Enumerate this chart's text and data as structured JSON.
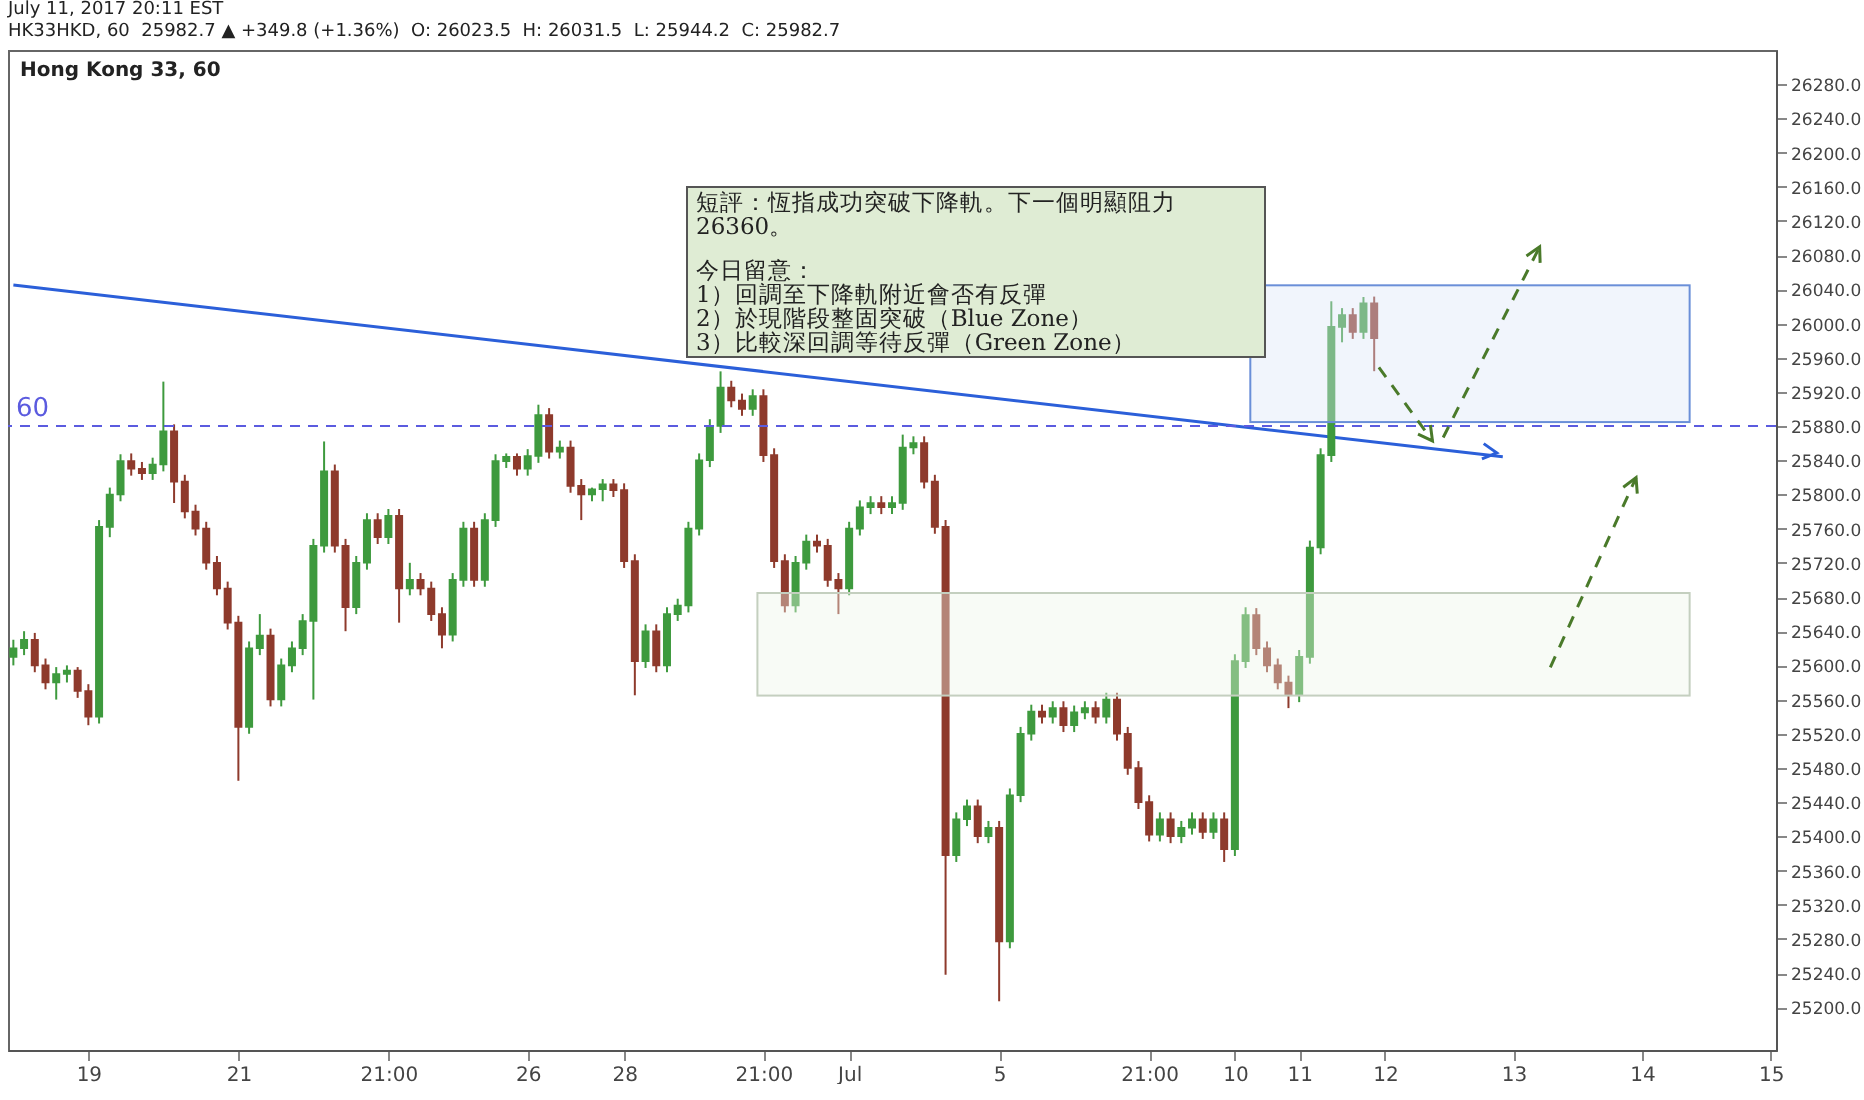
{
  "chart_data": {
    "type": "candlestick",
    "title": "Hong Kong 33, 60",
    "subtitle": "HK33HKD, 60  25982.7 ▲ +349.8 (+1.36%)  O: 26023.5  H: 26031.5  L: 25944.2  C: 25982.7",
    "annotations": [
      "July 11, 2017 20:11 EST",
      "短評：恆指成功突破下降軌。下一個明顯阻力26360。",
      "今日留意：",
      "1）回調至下降軌附近會否有反彈",
      "2）於現階段整固突破（Blue Zone）",
      "3）比較深回調等待反彈（Green Zone）",
      {
        "text": "60",
        "y": 25880
      }
    ],
    "categories": [
      null,
      null,
      null,
      null,
      null,
      null,
      null,
      "19",
      null,
      null,
      null,
      null,
      null,
      null,
      null,
      null,
      null,
      null,
      null,
      null,
      null,
      "21",
      null,
      null,
      null,
      null,
      null,
      null,
      null,
      null,
      null,
      null,
      null,
      null,
      null,
      "21:00",
      null,
      null,
      null,
      null,
      null,
      null,
      null,
      null,
      null,
      null,
      null,
      null,
      "26",
      null,
      null,
      null,
      null,
      null,
      null,
      null,
      null,
      "28",
      null,
      null,
      null,
      null,
      null,
      null,
      null,
      null,
      null,
      null,
      null,
      null,
      "21:00",
      null,
      null,
      null,
      null,
      null,
      null,
      null,
      "Jul",
      null,
      null,
      null,
      null,
      null,
      null,
      null,
      null,
      null,
      null,
      null,
      null,
      null,
      "5",
      null,
      null,
      null,
      null,
      null,
      null,
      null,
      null,
      null,
      null,
      null,
      null,
      null,
      "21:00",
      null,
      null,
      null,
      null,
      null,
      null,
      null,
      "10",
      null,
      null,
      null,
      null,
      null,
      "11",
      null,
      null,
      null,
      null,
      null,
      null,
      null,
      "12",
      null,
      null,
      null,
      null,
      null,
      null,
      null,
      null,
      null,
      null,
      null,
      "13",
      null,
      null,
      null,
      null,
      null,
      null,
      null,
      null,
      null,
      null,
      null,
      "14",
      null,
      null,
      null,
      null,
      null,
      null,
      null,
      null,
      null,
      null,
      null,
      "15"
    ],
    "ohlc": [
      [
        25610,
        25630,
        25600,
        25620
      ],
      [
        25620,
        25640,
        25612,
        25630
      ],
      [
        25630,
        25638,
        25592,
        25600
      ],
      [
        25600,
        25608,
        25572,
        25580
      ],
      [
        25580,
        25598,
        25560,
        25590
      ],
      [
        25590,
        25600,
        25580,
        25594
      ],
      [
        25594,
        25598,
        25562,
        25570
      ],
      [
        25570,
        25578,
        25530,
        25540
      ],
      [
        25540,
        25770,
        25532,
        25762
      ],
      [
        25762,
        25808,
        25750,
        25800
      ],
      [
        25800,
        25847,
        25792,
        25839
      ],
      [
        25839,
        25848,
        25822,
        25830
      ],
      [
        25830,
        25838,
        25817,
        25825
      ],
      [
        25825,
        25843,
        25817,
        25835
      ],
      [
        25835,
        25932,
        25827,
        25874
      ],
      [
        25874,
        25882,
        25790,
        25815
      ],
      [
        25815,
        25823,
        25772,
        25780
      ],
      [
        25780,
        25788,
        25752,
        25760
      ],
      [
        25760,
        25768,
        25712,
        25720
      ],
      [
        25720,
        25728,
        25682,
        25690
      ],
      [
        25690,
        25698,
        25642,
        25650
      ],
      [
        25650,
        25658,
        25465,
        25528
      ],
      [
        25528,
        25628,
        25520,
        25620
      ],
      [
        25620,
        25660,
        25612,
        25635
      ],
      [
        25635,
        25643,
        25552,
        25560
      ],
      [
        25560,
        25608,
        25552,
        25600
      ],
      [
        25600,
        25628,
        25592,
        25620
      ],
      [
        25620,
        25660,
        25612,
        25652
      ],
      [
        25652,
        25748,
        25560,
        25740
      ],
      [
        25740,
        25862,
        25732,
        25827
      ],
      [
        25827,
        25835,
        25732,
        25740
      ],
      [
        25740,
        25748,
        25640,
        25668
      ],
      [
        25668,
        25728,
        25660,
        25720
      ],
      [
        25720,
        25778,
        25712,
        25770
      ],
      [
        25770,
        25778,
        25742,
        25750
      ],
      [
        25750,
        25783,
        25742,
        25775
      ],
      [
        25775,
        25783,
        25650,
        25690
      ],
      [
        25690,
        25720,
        25682,
        25700
      ],
      [
        25700,
        25708,
        25682,
        25690
      ],
      [
        25690,
        25698,
        25652,
        25660
      ],
      [
        25660,
        25668,
        25620,
        25636
      ],
      [
        25636,
        25708,
        25628,
        25700
      ],
      [
        25700,
        25768,
        25692,
        25760
      ],
      [
        25760,
        25768,
        25692,
        25700
      ],
      [
        25700,
        25778,
        25692,
        25770
      ],
      [
        25770,
        25847,
        25762,
        25839
      ],
      [
        25839,
        25848,
        25831,
        25844
      ],
      [
        25844,
        25848,
        25822,
        25830
      ],
      [
        25830,
        25853,
        25822,
        25845
      ],
      [
        25845,
        25905,
        25837,
        25893
      ],
      [
        25893,
        25901,
        25842,
        25850
      ],
      [
        25850,
        25863,
        25842,
        25855
      ],
      [
        25855,
        25863,
        25802,
        25810
      ],
      [
        25810,
        25818,
        25770,
        25800
      ],
      [
        25800,
        25808,
        25792,
        25806
      ],
      [
        25806,
        25818,
        25792,
        25812
      ],
      [
        25812,
        25818,
        25797,
        25805
      ],
      [
        25805,
        25813,
        25714,
        25722
      ],
      [
        25722,
        25730,
        25565,
        25605
      ],
      [
        25605,
        25648,
        25597,
        25640
      ],
      [
        25640,
        25648,
        25592,
        25600
      ],
      [
        25600,
        25668,
        25592,
        25660
      ],
      [
        25660,
        25678,
        25652,
        25670
      ],
      [
        25670,
        25768,
        25662,
        25760
      ],
      [
        25760,
        25848,
        25752,
        25840
      ],
      [
        25840,
        25888,
        25832,
        25880
      ],
      [
        25880,
        25944,
        25872,
        25925
      ],
      [
        25925,
        25933,
        25902,
        25910
      ],
      [
        25910,
        25918,
        25892,
        25900
      ],
      [
        25900,
        25923,
        25892,
        25915
      ],
      [
        25915,
        25923,
        25838,
        25846
      ],
      [
        25846,
        25854,
        25714,
        25722
      ],
      [
        25722,
        25730,
        25662,
        25670
      ],
      [
        25670,
        25728,
        25662,
        25720
      ],
      [
        25720,
        25753,
        25712,
        25745
      ],
      [
        25745,
        25753,
        25732,
        25740
      ],
      [
        25740,
        25748,
        25692,
        25700
      ],
      [
        25700,
        25708,
        25660,
        25690
      ],
      [
        25690,
        25768,
        25682,
        25760
      ],
      [
        25760,
        25793,
        25752,
        25785
      ],
      [
        25785,
        25798,
        25777,
        25790
      ],
      [
        25790,
        25798,
        25777,
        25785
      ],
      [
        25785,
        25798,
        25777,
        25790
      ],
      [
        25790,
        25870,
        25782,
        25855
      ],
      [
        25855,
        25868,
        25847,
        25860
      ],
      [
        25860,
        25868,
        25807,
        25815
      ],
      [
        25815,
        25823,
        25754,
        25762
      ],
      [
        25762,
        25770,
        25238,
        25378
      ],
      [
        25378,
        25428,
        25370,
        25420
      ],
      [
        25420,
        25443,
        25412,
        25435
      ],
      [
        25435,
        25443,
        25392,
        25400
      ],
      [
        25400,
        25418,
        25392,
        25410
      ],
      [
        25410,
        25418,
        25207,
        25277
      ],
      [
        25277,
        25456,
        25269,
        25448
      ],
      [
        25448,
        25528,
        25440,
        25520
      ],
      [
        25520,
        25554,
        25512,
        25546
      ],
      [
        25546,
        25554,
        25532,
        25540
      ],
      [
        25540,
        25558,
        25532,
        25550
      ],
      [
        25550,
        25558,
        25522,
        25530
      ],
      [
        25530,
        25553,
        25522,
        25545
      ],
      [
        25545,
        25558,
        25537,
        25550
      ],
      [
        25550,
        25558,
        25532,
        25540
      ],
      [
        25540,
        25568,
        25532,
        25560
      ],
      [
        25560,
        25568,
        25512,
        25520
      ],
      [
        25520,
        25528,
        25472,
        25480
      ],
      [
        25480,
        25488,
        25432,
        25440
      ],
      [
        25440,
        25448,
        25394,
        25402
      ],
      [
        25402,
        25428,
        25394,
        25420
      ],
      [
        25420,
        25428,
        25392,
        25400
      ],
      [
        25400,
        25418,
        25392,
        25410
      ],
      [
        25410,
        25428,
        25402,
        25420
      ],
      [
        25420,
        25428,
        25397,
        25405
      ],
      [
        25405,
        25428,
        25397,
        25420
      ],
      [
        25420,
        25428,
        25370,
        25385
      ],
      [
        25385,
        25613,
        25377,
        25605
      ],
      [
        25605,
        25668,
        25597,
        25659
      ],
      [
        25659,
        25667,
        25612,
        25620
      ],
      [
        25620,
        25628,
        25592,
        25600
      ],
      [
        25600,
        25608,
        25572,
        25580
      ],
      [
        25580,
        25588,
        25550,
        25565
      ],
      [
        25565,
        25618,
        25557,
        25610
      ],
      [
        25610,
        25746,
        25602,
        25738
      ],
      [
        25738,
        25854,
        25730,
        25846
      ],
      [
        25846,
        26026,
        25838,
        25996
      ],
      [
        25996,
        26018,
        25978,
        26010
      ],
      [
        26010,
        26018,
        25982,
        25990
      ],
      [
        25990,
        26031,
        25982,
        26023.5
      ],
      [
        26023.5,
        26031.5,
        25944.2,
        25982.7
      ],
      null,
      null,
      null,
      null,
      null,
      null,
      null,
      null,
      null,
      null,
      null,
      null,
      null,
      null,
      null,
      null,
      null,
      null,
      null,
      null,
      null,
      null,
      null,
      null,
      null,
      null,
      null,
      null,
      null,
      null,
      null,
      null,
      null,
      null,
      null,
      null,
      null
    ],
    "series": [
      {
        "type": "line",
        "color": "#2b5fd9",
        "values": [
          26045,
          null,
          null,
          null,
          null,
          null,
          null,
          null,
          null,
          null,
          null,
          null,
          null,
          null,
          null,
          null,
          null,
          null,
          null,
          null,
          null,
          null,
          null,
          null,
          null,
          null,
          null,
          null,
          null,
          null,
          null,
          null,
          null,
          null,
          null,
          null,
          null,
          null,
          null,
          null,
          null,
          null,
          null,
          null,
          null,
          null,
          null,
          null,
          null,
          null,
          null,
          null,
          null,
          null,
          null,
          null,
          null,
          null,
          null,
          null,
          null,
          null,
          null,
          null,
          null,
          null,
          null,
          null,
          null,
          null,
          null,
          null,
          null,
          null,
          null,
          null,
          null,
          null,
          null,
          null,
          null,
          null,
          null,
          null,
          null,
          null,
          null,
          null,
          null,
          null,
          null,
          null,
          null,
          null,
          null,
          null,
          null,
          null,
          null,
          null,
          null,
          null,
          null,
          null,
          null,
          null,
          null,
          null,
          null,
          null,
          null,
          null,
          null,
          null,
          null,
          null,
          null,
          null,
          null,
          null,
          null,
          null,
          null,
          null,
          null,
          null,
          null,
          null,
          null,
          null,
          null,
          null,
          null,
          null,
          null,
          null,
          null,
          null,
          null,
          25844,
          null,
          null,
          null,
          null,
          null,
          null,
          null,
          null,
          null,
          null,
          null,
          null,
          null,
          null,
          null,
          null,
          null,
          null,
          null,
          null,
          null,
          null,
          null,
          null,
          null
        ]
      }
    ],
    "ref_lines": [
      {
        "axis": "y",
        "value": 25880,
        "color": "#5b5bdf",
        "line_style": "dashed"
      }
    ],
    "ylim": [
      25150,
      26320
    ],
    "yticks": [
      {
        "value": 25200,
        "label": "25200.0"
      },
      {
        "value": 25240,
        "label": "25240.0"
      },
      {
        "value": 25280,
        "label": "25280.0"
      },
      {
        "value": 25320,
        "label": "25320.0"
      },
      {
        "value": 25360,
        "label": "25360.0"
      },
      {
        "value": 25400,
        "label": "25400.0"
      },
      {
        "value": 25440,
        "label": "25440.0"
      },
      {
        "value": 25480,
        "label": "25480.0"
      },
      {
        "value": 25520,
        "label": "25520.0"
      },
      {
        "value": 25560,
        "label": "25560.0"
      },
      {
        "value": 25600,
        "label": "25600.0"
      },
      {
        "value": 25640,
        "label": "25640.0"
      },
      {
        "value": 25680,
        "label": "25680.0"
      },
      {
        "value": 25720,
        "label": "25720.0"
      },
      {
        "value": 25760,
        "label": "25760.0"
      },
      {
        "value": 25800,
        "label": "25800.0"
      },
      {
        "value": 25840,
        "label": "25840.0"
      },
      {
        "value": 25880,
        "label": "25880.0"
      },
      {
        "value": 25920,
        "label": "25920.0"
      },
      {
        "value": 25960,
        "label": "25960.0"
      },
      {
        "value": 26000,
        "label": "26000.0"
      },
      {
        "value": 26040,
        "label": "26040.0"
      },
      {
        "value": 26080,
        "label": "26080.0"
      },
      {
        "value": 26120,
        "label": "26120.0"
      },
      {
        "value": 26160,
        "label": "26160.0"
      },
      {
        "value": 26200,
        "label": "26200.0"
      },
      {
        "value": 26240,
        "label": "26240.0"
      },
      {
        "value": 26280,
        "label": "26280.0"
      }
    ]
  }
}
